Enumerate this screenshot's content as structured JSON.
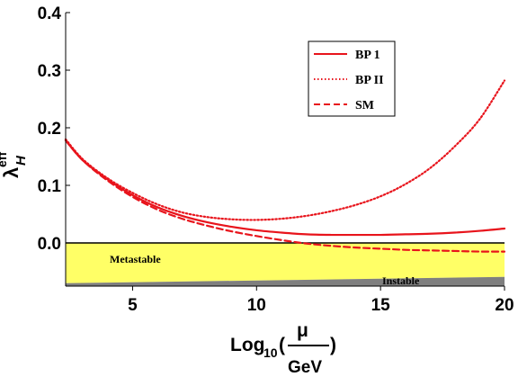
{
  "chart_data": {
    "type": "line",
    "xlim": [
      2.3,
      20
    ],
    "ylim": [
      -0.075,
      0.4
    ],
    "x_ticks": [
      5,
      10,
      15,
      20
    ],
    "x_tick_labels": [
      "5",
      "10",
      "15",
      "20"
    ],
    "y_ticks": [
      0.0,
      0.1,
      0.2,
      0.3,
      0.4
    ],
    "y_tick_labels": [
      "0.0",
      "0.1",
      "0.2",
      "0.3",
      "0.4"
    ],
    "xlabel": {
      "prefix": "Log",
      "subscript": "10",
      "numerator": "μ",
      "denominator": "GeV"
    },
    "ylabel": {
      "symbol": "λ",
      "subscript": "H",
      "superscript": "eff"
    },
    "grid": false,
    "legend_position": "top-right",
    "series": [
      {
        "name": "BP 1",
        "style": "solid",
        "color": "#e8141c",
        "x": [
          2.3,
          3,
          4,
          5,
          6,
          7,
          8,
          9,
          10,
          11,
          12,
          13,
          14,
          15,
          16,
          17,
          18,
          19,
          20
        ],
        "y": [
          0.178,
          0.143,
          0.11,
          0.083,
          0.062,
          0.047,
          0.036,
          0.028,
          0.022,
          0.018,
          0.015,
          0.014,
          0.014,
          0.014,
          0.015,
          0.016,
          0.018,
          0.021,
          0.025
        ]
      },
      {
        "name": "BP II",
        "style": "dotted",
        "color": "#e8141c",
        "x": [
          2.3,
          3,
          4,
          5,
          6,
          7,
          8,
          9,
          10,
          11,
          12,
          13,
          14,
          15,
          16,
          17,
          18,
          19,
          20
        ],
        "y": [
          0.18,
          0.145,
          0.112,
          0.087,
          0.067,
          0.053,
          0.045,
          0.041,
          0.04,
          0.042,
          0.047,
          0.055,
          0.066,
          0.081,
          0.102,
          0.13,
          0.168,
          0.215,
          0.282
        ]
      },
      {
        "name": "SM",
        "style": "dashed",
        "color": "#e8141c",
        "x": [
          2.3,
          3,
          4,
          5,
          6,
          7,
          8,
          9,
          10,
          11,
          12,
          13,
          14,
          15,
          16,
          17,
          18,
          19,
          20
        ],
        "y": [
          0.178,
          0.143,
          0.108,
          0.08,
          0.058,
          0.042,
          0.03,
          0.02,
          0.012,
          0.005,
          -0.001,
          -0.005,
          -0.008,
          -0.01,
          -0.012,
          -0.013,
          -0.014,
          -0.015,
          -0.015
        ]
      }
    ],
    "regions": [
      {
        "label": "Metastable",
        "color": "#ffff66",
        "lower_at_xmin": -0.07,
        "lower_at_xmax": -0.059,
        "upper": 0.0
      },
      {
        "label": "Instable",
        "color": "#7f7f7f",
        "lower": -0.075,
        "upper_at_xmin": -0.07,
        "upper_at_xmax": -0.059
      }
    ],
    "colors": {
      "curve": "#e8141c",
      "metastable": "#ffff66",
      "instable": "#7f7f7f",
      "axis": "#000000"
    }
  }
}
